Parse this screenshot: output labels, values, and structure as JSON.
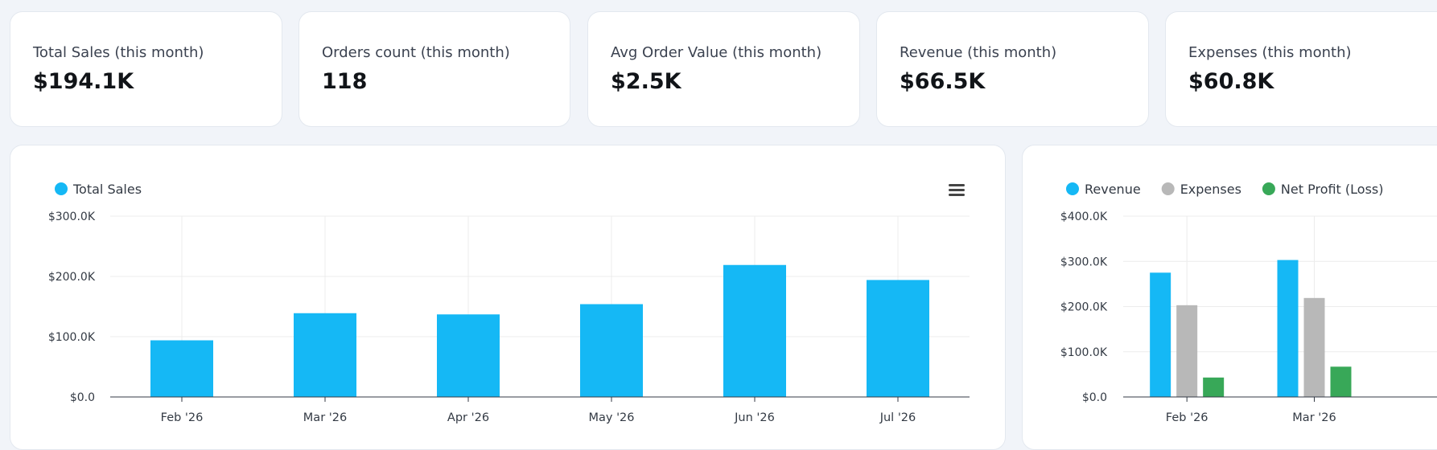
{
  "kpis": [
    {
      "label": "Total Sales (this month)",
      "value": "$194.1K"
    },
    {
      "label": "Orders count (this month)",
      "value": "118"
    },
    {
      "label": "Avg Order Value (this month)",
      "value": "$2.5K"
    },
    {
      "label": "Revenue (this month)",
      "value": "$66.5K"
    },
    {
      "label": "Expenses (this month)",
      "value": "$60.8K"
    }
  ],
  "colors": {
    "total_sales": "#15b8f5",
    "revenue": "#15b8f5",
    "expenses": "#b8b8b8",
    "net_profit": "#38a858"
  },
  "chart_data": [
    {
      "type": "bar",
      "categories": [
        "Feb '26",
        "Mar '26",
        "Apr '26",
        "May '26",
        "Jun '26",
        "Jul '26"
      ],
      "series": [
        {
          "name": "Total Sales",
          "values": [
            94000,
            139000,
            137000,
            154000,
            219000,
            194100
          ]
        }
      ],
      "ylim": [
        0,
        300000
      ],
      "y_ticks": [
        "$0.0",
        "$100.0K",
        "$200.0K",
        "$300.0K"
      ],
      "legend": "top-left",
      "grid": true,
      "menu_icon": "hamburger-menu-icon"
    },
    {
      "type": "bar",
      "categories": [
        "Feb '26",
        "Mar '26"
      ],
      "series": [
        {
          "name": "Revenue",
          "values": [
            275000,
            303000
          ]
        },
        {
          "name": "Expenses",
          "values": [
            203000,
            219000
          ]
        },
        {
          "name": "Net Profit (Loss)",
          "values": [
            43000,
            67000
          ]
        }
      ],
      "ylim": [
        0,
        400000
      ],
      "y_ticks": [
        "$0.0",
        "$100.0K",
        "$200.0K",
        "$300.0K",
        "$400.0K"
      ],
      "legend": "top-left",
      "grid": true
    }
  ]
}
